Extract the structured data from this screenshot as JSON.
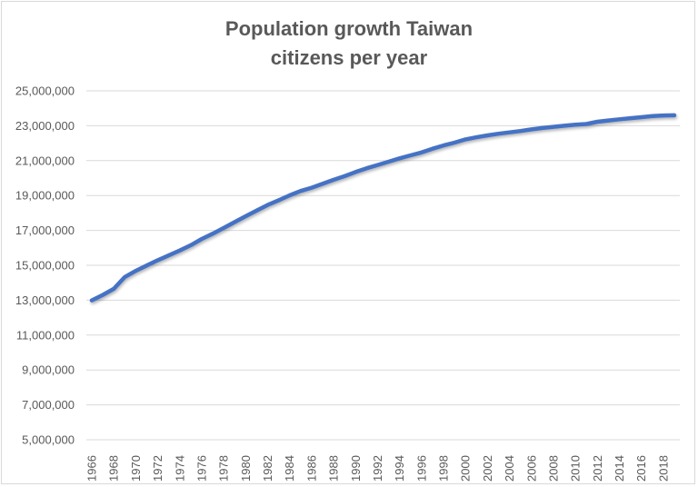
{
  "chart_data": {
    "type": "line",
    "title_lines": [
      "Population growth Taiwan",
      "citizens per year"
    ],
    "xlabel": "",
    "ylabel": "",
    "ylim": [
      5000000,
      25000000
    ],
    "y_ticks": [
      "5,000,000",
      "7,000,000",
      "9,000,000",
      "11,000,000",
      "13,000,000",
      "15,000,000",
      "17,000,000",
      "19,000,000",
      "21,000,000",
      "23,000,000",
      "25,000,000"
    ],
    "grid": true,
    "legend": "none",
    "line_color": "#4472C4",
    "x": [
      1966,
      1967,
      1968,
      1969,
      1970,
      1971,
      1972,
      1973,
      1974,
      1975,
      1976,
      1977,
      1978,
      1979,
      1980,
      1981,
      1982,
      1983,
      1984,
      1985,
      1986,
      1987,
      1988,
      1989,
      1990,
      1991,
      1992,
      1993,
      1994,
      1995,
      1996,
      1997,
      1998,
      1999,
      2000,
      2001,
      2002,
      2003,
      2004,
      2005,
      2006,
      2007,
      2008,
      2009,
      2010,
      2011,
      2012,
      2013,
      2014,
      2015,
      2016,
      2017,
      2018,
      2019
    ],
    "x_tick_labels": [
      "1966",
      "1968",
      "1970",
      "1972",
      "1974",
      "1976",
      "1978",
      "1980",
      "1982",
      "1984",
      "1986",
      "1988",
      "1990",
      "1992",
      "1994",
      "1996",
      "1998",
      "2000",
      "2002",
      "2004",
      "2006",
      "2008",
      "2010",
      "2012",
      "2014",
      "2016",
      "2018"
    ],
    "values": [
      12990000,
      13300000,
      13650000,
      14330000,
      14680000,
      14990000,
      15290000,
      15570000,
      15850000,
      16150000,
      16510000,
      16810000,
      17140000,
      17480000,
      17810000,
      18140000,
      18460000,
      18730000,
      19010000,
      19260000,
      19450000,
      19670000,
      19900000,
      20110000,
      20350000,
      20560000,
      20750000,
      20940000,
      21130000,
      21300000,
      21470000,
      21680000,
      21870000,
      22030000,
      22220000,
      22340000,
      22450000,
      22540000,
      22620000,
      22700000,
      22790000,
      22870000,
      22940000,
      23000000,
      23060000,
      23100000,
      23230000,
      23300000,
      23370000,
      23430000,
      23490000,
      23550000,
      23590000,
      23600000
    ]
  }
}
